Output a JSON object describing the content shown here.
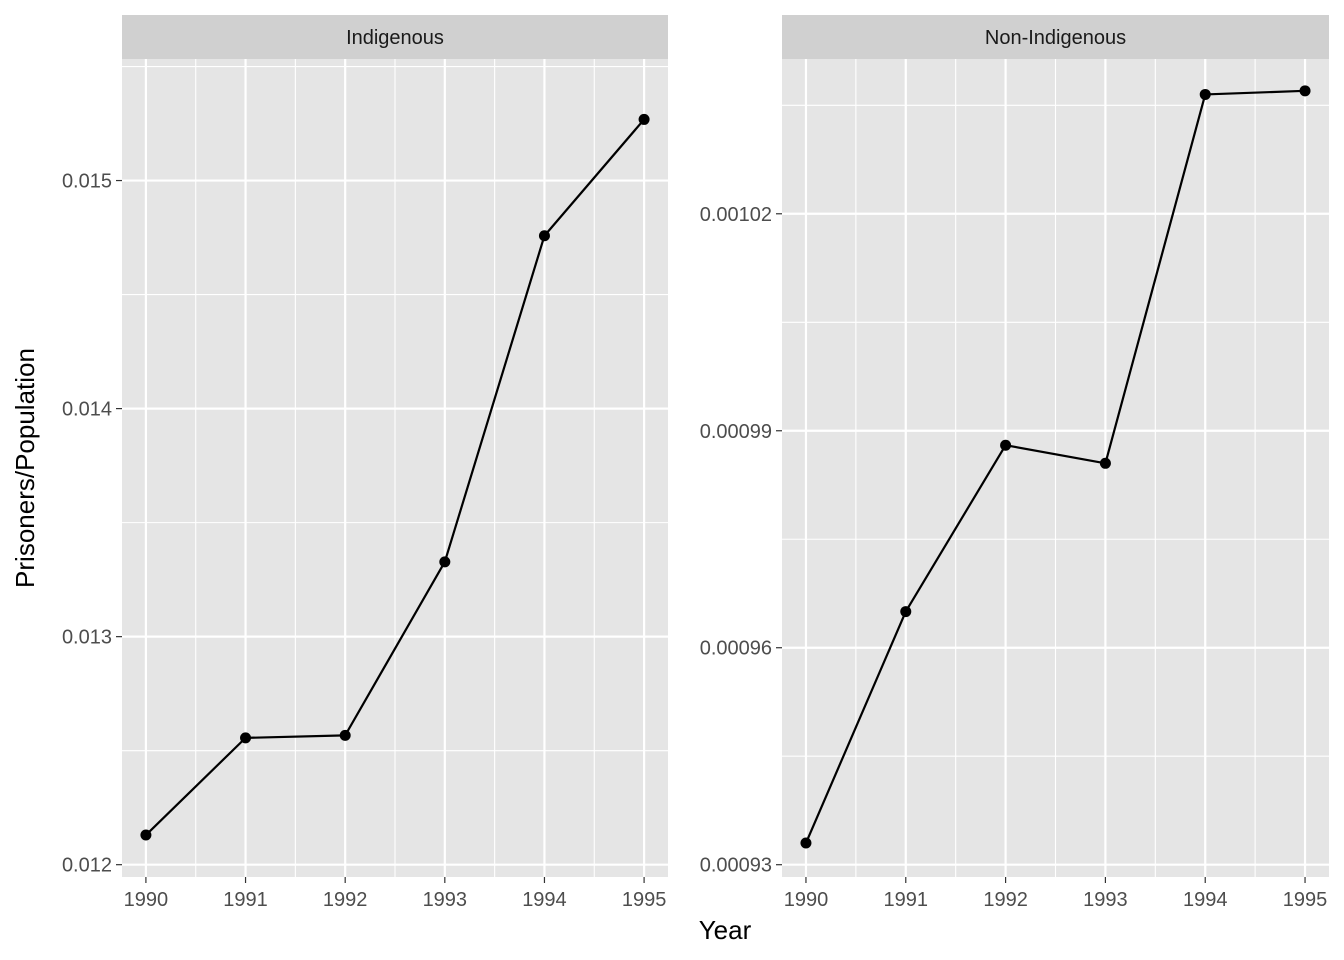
{
  "chart_data": {
    "type": "line",
    "xlabel": "Year",
    "ylabel": "Prisoners/Population",
    "grid": true,
    "colors": {
      "panel_background": "#e5e5e5",
      "strip_background": "#d0d0d0",
      "gridline": "#ffffff",
      "series": "#000000"
    },
    "facets": [
      {
        "strip": "Indigenous",
        "x": [
          1990,
          1991,
          1992,
          1993,
          1994,
          1995
        ],
        "y": [
          0.01213,
          0.012556,
          0.012567,
          0.013328,
          0.014758,
          0.015268
        ],
        "xlim": [
          1989.76,
          1995.24
        ],
        "ylim": [
          0.011946,
          0.015533
        ],
        "xticks": [
          1990,
          1991,
          1992,
          1993,
          1994,
          1995
        ],
        "xtick_labels": [
          "1990",
          "1991",
          "1992",
          "1993",
          "1994",
          "1995"
        ],
        "yticks": [
          0.012,
          0.013,
          0.014,
          0.015
        ],
        "ytick_labels": [
          "0.012",
          "0.013",
          "0.014",
          "0.015"
        ]
      },
      {
        "strip": "Non-Indigenous",
        "x": [
          1990,
          1991,
          1992,
          1993,
          1994,
          1995
        ],
        "y": [
          0.000933,
          0.000965,
          0.000988,
          0.0009855,
          0.0010365,
          0.001037
        ],
        "xlim": [
          1989.76,
          1995.24
        ],
        "ylim": [
          0.0009283,
          0.0010414
        ],
        "xticks": [
          1990,
          1991,
          1992,
          1993,
          1994,
          1995
        ],
        "xtick_labels": [
          "1990",
          "1991",
          "1992",
          "1993",
          "1994",
          "1995"
        ],
        "yticks": [
          0.00093,
          0.00096,
          0.00099,
          0.00102
        ],
        "ytick_labels": [
          "0.00093",
          "0.00096",
          "0.00099",
          "0.00102"
        ]
      }
    ]
  }
}
